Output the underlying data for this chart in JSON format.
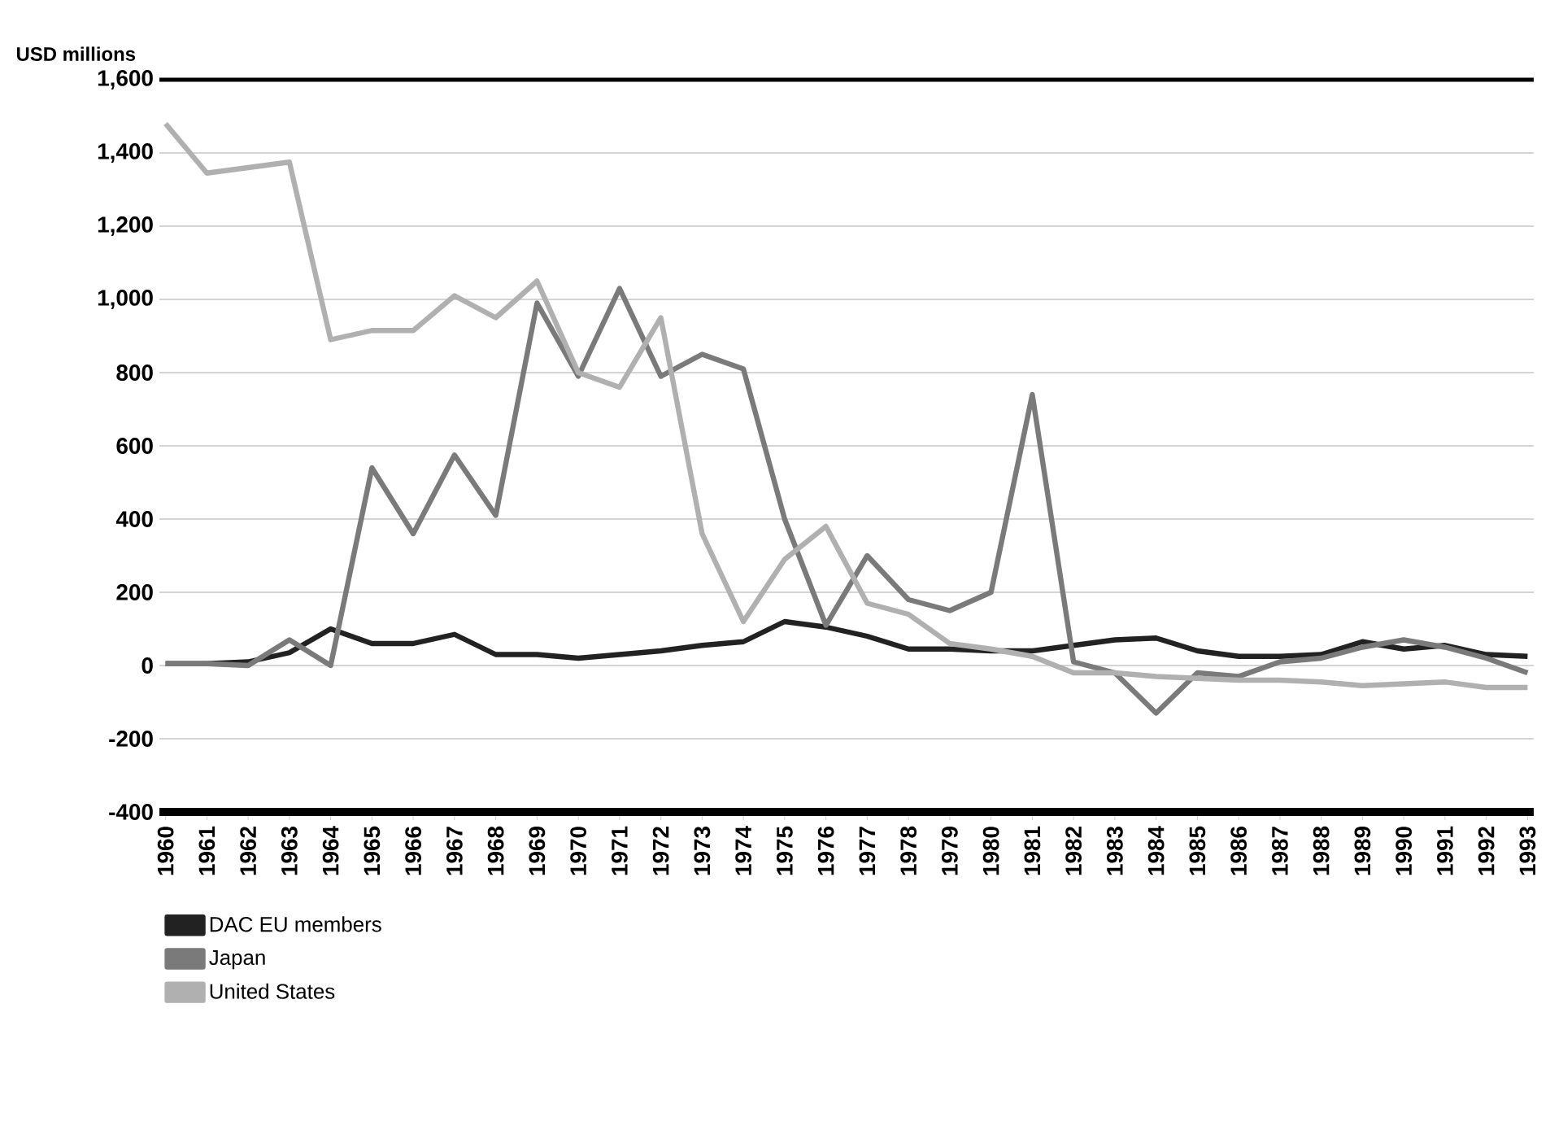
{
  "chart_data": {
    "type": "line",
    "ylabel": "USD millions",
    "categories": [
      "1960",
      "1961",
      "1962",
      "1963",
      "1964",
      "1965",
      "1966",
      "1967",
      "1968",
      "1969",
      "1970",
      "1971",
      "1972",
      "1973",
      "1974",
      "1975",
      "1976",
      "1977",
      "1978",
      "1979",
      "1980",
      "1981",
      "1982",
      "1983",
      "1984",
      "1985",
      "1986",
      "1987",
      "1988",
      "1989",
      "1990",
      "1991",
      "1992",
      "1993"
    ],
    "series": [
      {
        "name": "DAC EU members",
        "color": "#222222",
        "values": [
          5,
          5,
          10,
          35,
          100,
          60,
          60,
          85,
          30,
          30,
          20,
          30,
          40,
          55,
          65,
          120,
          105,
          80,
          45,
          45,
          40,
          40,
          55,
          70,
          75,
          40,
          25,
          25,
          30,
          65,
          45,
          55,
          30,
          25
        ]
      },
      {
        "name": "Japan",
        "color": "#7a7a7a",
        "values": [
          5,
          5,
          0,
          70,
          0,
          540,
          360,
          575,
          410,
          990,
          790,
          1030,
          790,
          850,
          810,
          400,
          110,
          300,
          180,
          150,
          200,
          740,
          10,
          -20,
          -130,
          -20,
          -30,
          10,
          20,
          50,
          70,
          50,
          20,
          -20
        ]
      },
      {
        "name": "United States",
        "color": "#b0b0b0",
        "values": [
          1480,
          1345,
          1360,
          1375,
          890,
          915,
          915,
          1010,
          950,
          1050,
          800,
          760,
          950,
          360,
          120,
          290,
          380,
          170,
          140,
          60,
          45,
          25,
          -20,
          -20,
          -30,
          -35,
          -40,
          -40,
          -45,
          -55,
          -50,
          -45,
          -60,
          -60
        ]
      }
    ],
    "ylim": [
      -400,
      1600
    ],
    "yticks": [
      {
        "value": -400,
        "label": "-400"
      },
      {
        "value": -200,
        "label": "-200"
      },
      0,
      200,
      400,
      600,
      800,
      {
        "value": 1000,
        "label": "1,000"
      },
      {
        "value": 1200,
        "label": "1,200"
      },
      {
        "value": 1400,
        "label": "1,400"
      },
      {
        "value": 1600,
        "label": "1,600"
      }
    ],
    "grid": "y",
    "legend": "bottom",
    "marker": "none",
    "line_style": "solid"
  }
}
